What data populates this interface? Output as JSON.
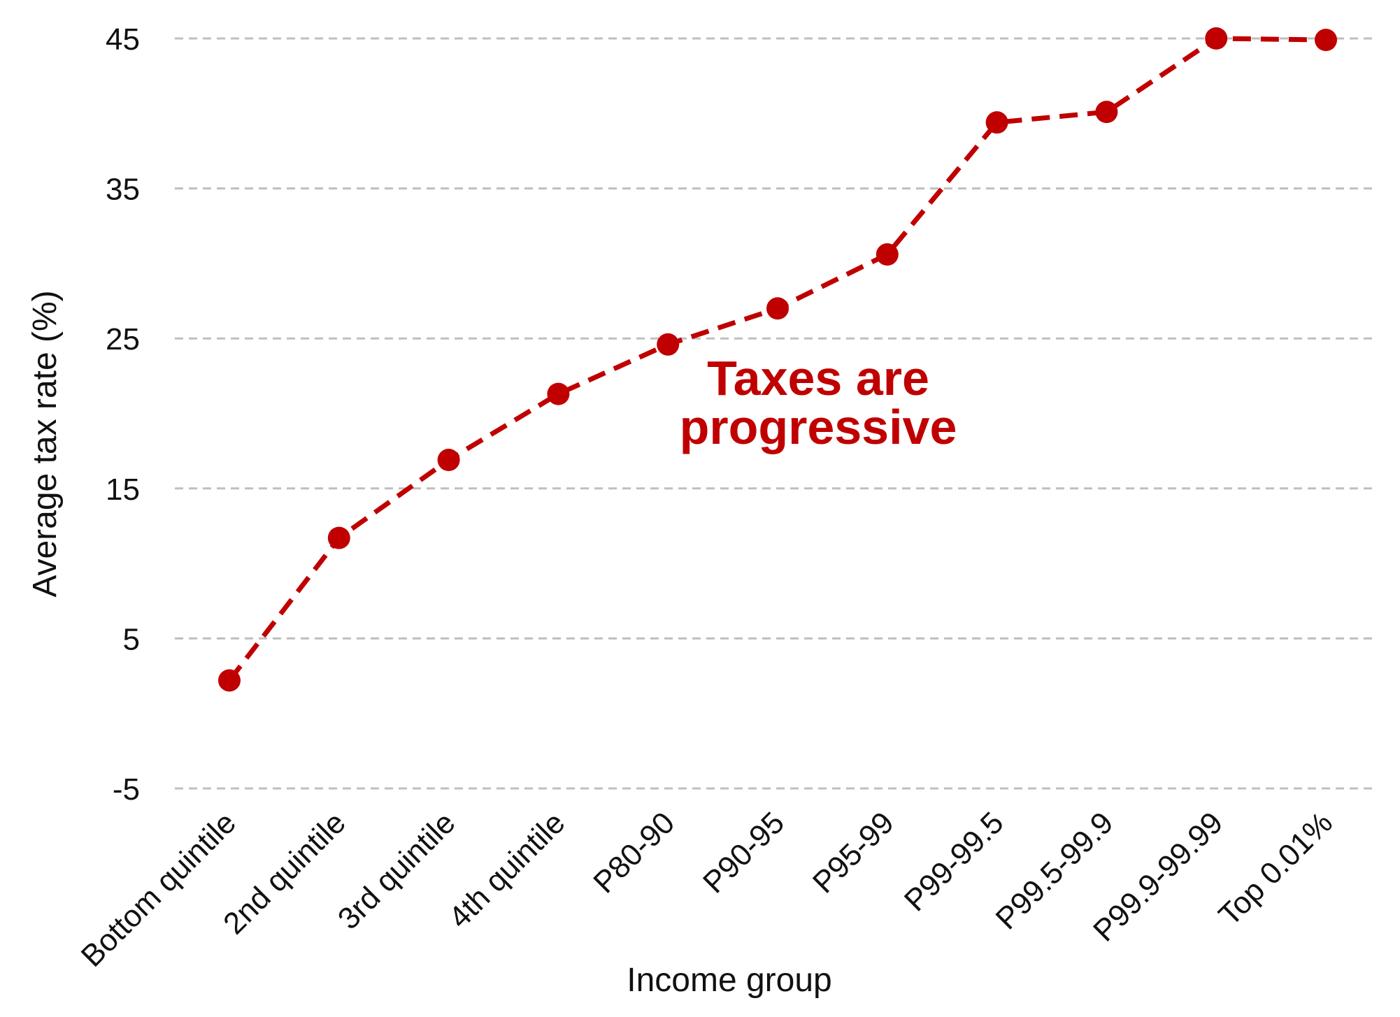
{
  "chart_data": {
    "type": "line",
    "title": "",
    "xlabel": "Income group",
    "ylabel": "Average tax rate (%)",
    "ylim": [
      -5,
      45
    ],
    "yticks": [
      -5,
      5,
      15,
      25,
      35,
      45
    ],
    "grid": "horizontal dashed",
    "categories": [
      "Bottom quintile",
      "2nd quintile",
      "3rd quintile",
      "4th quintile",
      "P80-90",
      "P90-95",
      "P95-99",
      "P99-99.5",
      "P99.5-99.9",
      "P99.9-99.99",
      "Top 0.01%"
    ],
    "series": [
      {
        "values": [
          2.2,
          11.7,
          16.9,
          21.3,
          24.6,
          27.0,
          30.6,
          39.4,
          40.1,
          45.0,
          44.9
        ],
        "line_style": "dashed",
        "markers": "filled circles"
      }
    ],
    "annotations": [
      {
        "text_lines": [
          "Taxes are",
          "progressive"
        ]
      }
    ],
    "colors": {
      "series": "#c00000",
      "grid": "#bfbfbf",
      "text": "#111111"
    }
  }
}
